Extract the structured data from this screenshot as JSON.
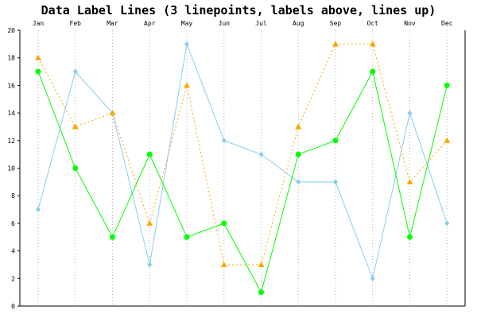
{
  "chart_data": {
    "type": "line",
    "title": "Data Label Lines (3 linepoints, labels above, lines up)",
    "categories": [
      "Jan",
      "Feb",
      "Mar",
      "Apr",
      "May",
      "Jun",
      "Jul",
      "Aug",
      "Sep",
      "Oct",
      "Nov",
      "Dec"
    ],
    "ylim": [
      0,
      20
    ],
    "yticks": [
      0,
      2,
      4,
      6,
      8,
      10,
      12,
      14,
      16,
      18,
      20
    ],
    "xlabel": "",
    "ylabel": "",
    "grid": {
      "vertical": true,
      "horizontal": false
    },
    "series": [
      {
        "values": [
          7,
          17,
          14,
          3,
          19,
          12,
          11,
          9,
          9,
          2,
          14,
          6
        ],
        "color": "#87ceeb",
        "marker": "diamond",
        "line": "solid"
      },
      {
        "values": [
          18,
          13,
          14,
          6,
          16,
          3,
          3,
          13,
          19,
          19,
          9,
          12
        ],
        "color": "#ffa500",
        "marker": "triangle",
        "line": "dotted"
      },
      {
        "values": [
          17,
          10,
          5,
          11,
          5,
          6,
          1,
          11,
          12,
          17,
          5,
          16
        ],
        "color": "#00ff00",
        "marker": "circle",
        "line": "solid"
      }
    ]
  }
}
